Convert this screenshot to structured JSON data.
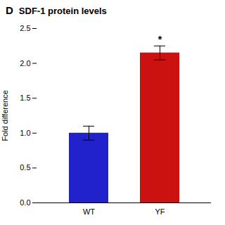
{
  "chart_data": {
    "type": "bar",
    "title": "SDF-1 protein levels",
    "annotations": [
      {
        "text": "D"
      },
      {
        "text": "*",
        "category": "YF"
      }
    ],
    "categories": [
      "WT",
      "YF"
    ],
    "values": [
      1.0,
      2.15
    ],
    "errors": [
      0.1,
      0.1
    ],
    "colors": [
      "#2222cc",
      "#cc1111"
    ],
    "ylabel": "Fold difference",
    "ylim": [
      0,
      2.5
    ],
    "yticks": [
      {
        "value": 0.0,
        "label": "0.0"
      },
      {
        "value": 0.5,
        "label": "0.5"
      },
      {
        "value": 1.0,
        "label": "1.0"
      },
      {
        "value": 1.5,
        "label": "1.5"
      },
      {
        "value": 2.0,
        "label": "2.0"
      },
      {
        "value": 2.5,
        "label": "2.5"
      }
    ],
    "grid": false
  }
}
